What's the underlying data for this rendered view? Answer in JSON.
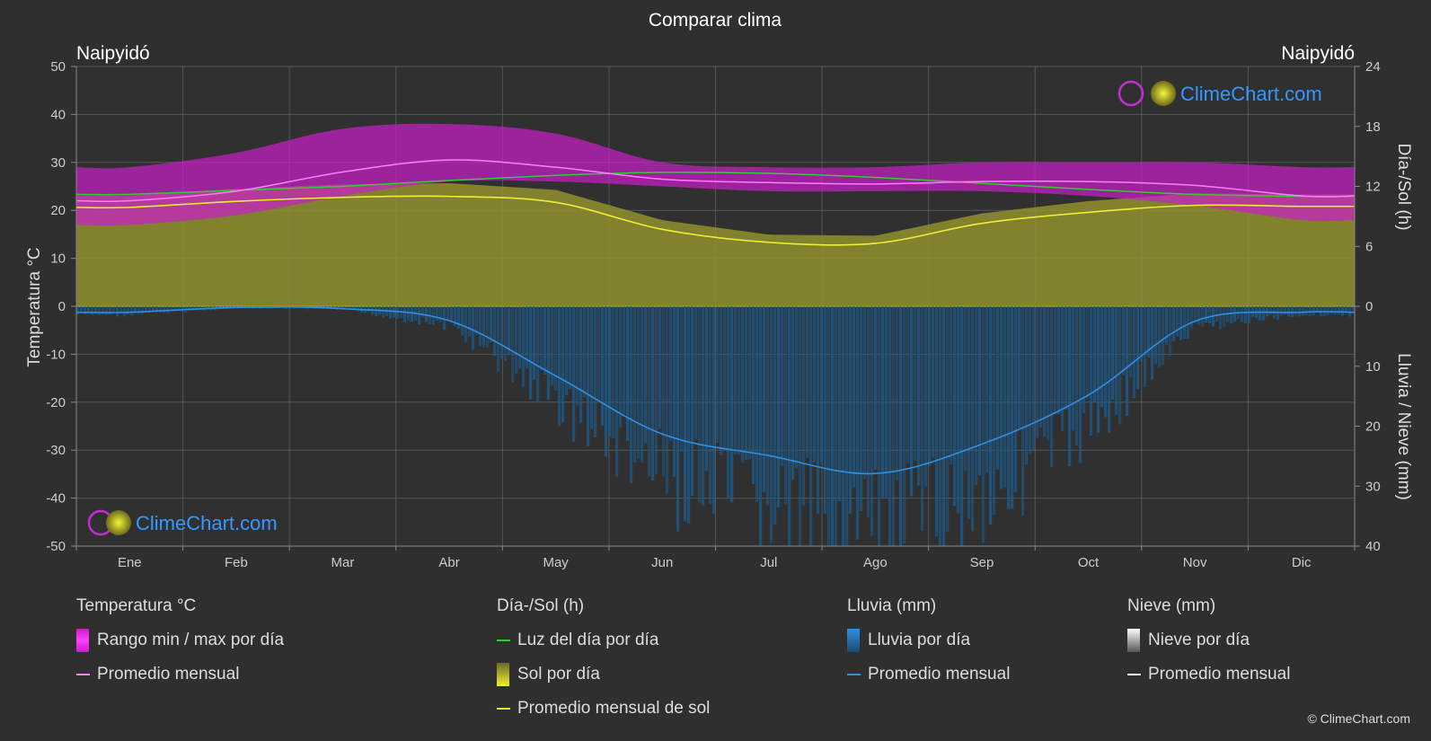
{
  "title": "Comparar clima",
  "location_left": "Naipyidó",
  "location_right": "Naipyidó",
  "watermark": "ClimeChart.com",
  "copyright": "© ClimeChart.com",
  "colors": {
    "background": "#2f2f2f",
    "temp_range": "#c81ec8",
    "temp_avg": "#ff7cff",
    "daylight": "#33cc33",
    "sun_fill": "#8f8f2e",
    "sun_avg": "#eeee33",
    "rain_fill": "#1c5a8c",
    "rain_avg": "#2e8fe6",
    "snow_avg": "#ffffff",
    "brand": "#3399ff"
  },
  "legend": {
    "temp": {
      "heading": "Temperatura °C",
      "range": "Rango min / max por día",
      "avg": "Promedio mensual"
    },
    "sun": {
      "heading": "Día-/Sol (h)",
      "daylight": "Luz del día por día",
      "sun": "Sol por día",
      "avg": "Promedio mensual de sol"
    },
    "rain": {
      "heading": "Lluvia (mm)",
      "rain": "Lluvia por día",
      "avg": "Promedio mensual"
    },
    "snow": {
      "heading": "Nieve (mm)",
      "snow": "Nieve por día",
      "avg": "Promedio mensual"
    }
  },
  "chart_data": {
    "type": "area",
    "categories": [
      "Ene",
      "Feb",
      "Mar",
      "Abr",
      "May",
      "Jun",
      "Jul",
      "Ago",
      "Sep",
      "Oct",
      "Nov",
      "Dic"
    ],
    "y_left": {
      "label": "Temperatura °C",
      "range": [
        -50,
        50
      ],
      "ticks": [
        50,
        40,
        30,
        20,
        10,
        0,
        -10,
        -20,
        -30,
        -40,
        -50
      ]
    },
    "y_right_top": {
      "label": "Día-/Sol (h)",
      "range": [
        0,
        24
      ],
      "ticks": [
        24,
        18,
        12,
        6,
        0
      ]
    },
    "y_right_bottom": {
      "label": "Lluvia / Nieve (mm)",
      "range": [
        0,
        40
      ],
      "ticks": [
        0,
        10,
        20,
        30,
        40
      ]
    },
    "grid": true,
    "series": [
      {
        "name": "Rango min / max por día",
        "kind": "band",
        "axis": "temp",
        "min": [
          17,
          19,
          23,
          26,
          26,
          25,
          24,
          24,
          24,
          23,
          21,
          18
        ],
        "max": [
          29,
          32,
          37,
          38,
          36,
          30,
          29,
          29,
          30,
          30,
          30,
          29
        ]
      },
      {
        "name": "Promedio mensual",
        "kind": "line",
        "axis": "temp",
        "values": [
          22,
          24,
          28,
          30.5,
          29,
          26.5,
          25.8,
          25.5,
          26,
          26,
          25.2,
          23
        ]
      },
      {
        "name": "Luz del día por día",
        "kind": "line",
        "axis": "hours",
        "values": [
          11.2,
          11.6,
          12.0,
          12.6,
          13.1,
          13.4,
          13.3,
          12.9,
          12.3,
          11.7,
          11.2,
          11.0
        ]
      },
      {
        "name": "Promedio mensual de sol",
        "kind": "line",
        "axis": "hours",
        "values": [
          9.9,
          10.5,
          10.9,
          11.0,
          10.4,
          7.7,
          6.4,
          6.3,
          8.3,
          9.4,
          10.1,
          10.0
        ]
      },
      {
        "name": "Promedio mensual",
        "kind": "line",
        "axis": "rain",
        "values": [
          1.0,
          0.2,
          0.4,
          2.4,
          11.6,
          21.3,
          24.9,
          27.9,
          23.0,
          14.8,
          2.5,
          1.0
        ]
      },
      {
        "name": "Promedio mensual",
        "kind": "line",
        "axis": "snow",
        "values": [
          0,
          0,
          0,
          0,
          0,
          0,
          0,
          0,
          0,
          0,
          0,
          0
        ]
      }
    ]
  }
}
